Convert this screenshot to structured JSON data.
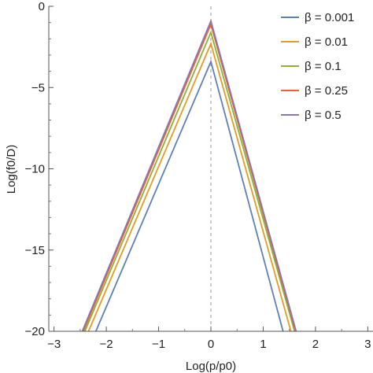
{
  "chart_data": {
    "type": "line",
    "title": "",
    "xlabel": "Log(p/p0)",
    "ylabel": "Log(f0/D)",
    "xlim": [
      -3.1,
      3.1
    ],
    "ylim": [
      -20,
      0
    ],
    "x_ticks": [
      -3,
      -2,
      -1,
      0,
      1,
      2,
      3
    ],
    "y_ticks": [
      0,
      -5,
      -10,
      -15,
      -20
    ],
    "x_tick_labels": [
      "−3",
      "−2",
      "−1",
      "0",
      "1",
      "2",
      "3"
    ],
    "y_tick_labels": [
      "0",
      "−5",
      "−10",
      "−15",
      "−20"
    ],
    "grid": false,
    "reference_line": {
      "x": 0,
      "style": "dashed",
      "color": "#999999"
    },
    "legend": {
      "position": "top-right",
      "symbol": "β"
    },
    "series": [
      {
        "name": "β = 0.001",
        "color": "#5E81B5",
        "x": [
          -2.2,
          0,
          1.38
        ],
        "y": [
          -20,
          -3.4,
          -20
        ]
      },
      {
        "name": "β = 0.01",
        "color": "#E19C24",
        "x": [
          -2.34,
          0,
          1.53
        ],
        "y": [
          -20,
          -2.3,
          -20
        ]
      },
      {
        "name": "β = 0.1",
        "color": "#8FB032",
        "x": [
          -2.41,
          0,
          1.6
        ],
        "y": [
          -20,
          -1.6,
          -20
        ]
      },
      {
        "name": "β = 0.25",
        "color": "#EB6235",
        "x": [
          -2.44,
          0,
          1.62
        ],
        "y": [
          -20,
          -1.1,
          -20
        ]
      },
      {
        "name": "β = 0.5",
        "color": "#8778B3",
        "x": [
          -2.46,
          0,
          1.63
        ],
        "y": [
          -20,
          -0.9,
          -20
        ]
      }
    ]
  }
}
